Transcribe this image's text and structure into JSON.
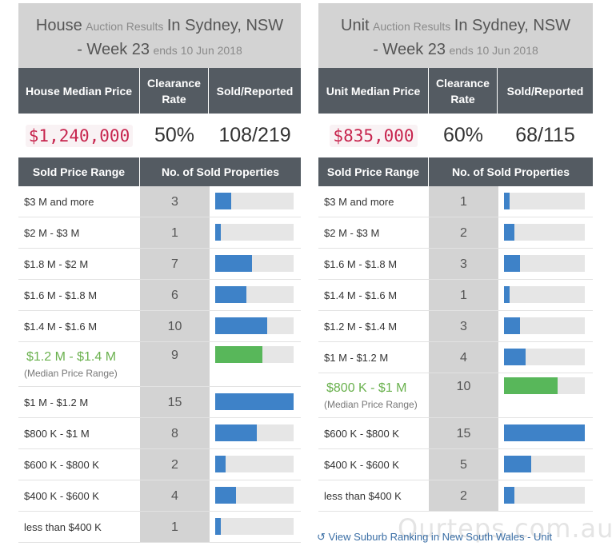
{
  "house": {
    "title": {
      "type": "House",
      "auction": "Auction Results",
      "location": "In Sydney, NSW",
      "week": "- Week 23",
      "ends": "ends 10 Jun 2018"
    },
    "headers": {
      "median": "House Median Price",
      "clearance": "Clearance Rate",
      "sold_reported": "Sold/Reported"
    },
    "median_price": "$1,240,000",
    "clearance_rate": "50%",
    "sold_reported": "108/219",
    "table_headers": {
      "range": "Sold Price Range",
      "count": "No. of Sold Properties"
    },
    "rows": [
      {
        "range": "$3 M and more",
        "count": "3",
        "fraction": 0.2
      },
      {
        "range": "$2 M - $3 M",
        "count": "1",
        "fraction": 0.067
      },
      {
        "range": "$1.8 M - $2 M",
        "count": "7",
        "fraction": 0.467
      },
      {
        "range": "$1.6 M - $1.8 M",
        "count": "6",
        "fraction": 0.4
      },
      {
        "range": "$1.4 M - $1.6 M",
        "count": "10",
        "fraction": 0.667
      },
      {
        "range": "$1.2 M - $1.4 M",
        "sub": "(Median Price Range)",
        "median": true,
        "count": "9",
        "fraction": 0.6
      },
      {
        "range": "$1 M - $1.2 M",
        "count": "15",
        "fraction": 1.0
      },
      {
        "range": "$800 K - $1 M",
        "count": "8",
        "fraction": 0.533
      },
      {
        "range": "$600 K - $800 K",
        "count": "2",
        "fraction": 0.133
      },
      {
        "range": "$400 K - $600 K",
        "count": "4",
        "fraction": 0.267
      },
      {
        "range": "less than $400 K",
        "count": "1",
        "fraction": 0.067
      }
    ]
  },
  "unit": {
    "title": {
      "type": "Unit",
      "auction": "Auction Results",
      "location": "In Sydney, NSW",
      "week": "- Week 23",
      "ends": "ends 10 Jun 2018"
    },
    "headers": {
      "median": "Unit Median Price",
      "clearance": "Clearance Rate",
      "sold_reported": "Sold/Reported"
    },
    "median_price": "$835,000",
    "clearance_rate": "60%",
    "sold_reported": "68/115",
    "table_headers": {
      "range": "Sold Price Range",
      "count": "No. of Sold Properties"
    },
    "rows": [
      {
        "range": "$3 M and more",
        "count": "1",
        "fraction": 0.067
      },
      {
        "range": "$2 M - $3 M",
        "count": "2",
        "fraction": 0.133
      },
      {
        "range": "$1.6 M - $1.8 M",
        "count": "3",
        "fraction": 0.2
      },
      {
        "range": "$1.4 M - $1.6 M",
        "count": "1",
        "fraction": 0.067
      },
      {
        "range": "$1.2 M - $1.4 M",
        "count": "3",
        "fraction": 0.2
      },
      {
        "range": "$1 M - $1.2 M",
        "count": "4",
        "fraction": 0.267
      },
      {
        "range": "$800 K - $1 M",
        "sub": "(Median Price Range)",
        "median": true,
        "count": "10",
        "fraction": 0.667
      },
      {
        "range": "$600 K - $800 K",
        "count": "15",
        "fraction": 1.0
      },
      {
        "range": "$400 K - $600 K",
        "count": "5",
        "fraction": 0.333
      },
      {
        "range": "less than $400 K",
        "count": "2",
        "fraction": 0.133
      }
    ]
  },
  "footer": {
    "icon": "external-link-icon",
    "link": "View Suburb Ranking in New South Wales - Unit"
  },
  "watermark": "Ourteps.com.au",
  "colors": {
    "bar": "#3e82c8",
    "median_bar": "#58b75a",
    "header_bg": "#545b62",
    "price": "#c7254e"
  }
}
